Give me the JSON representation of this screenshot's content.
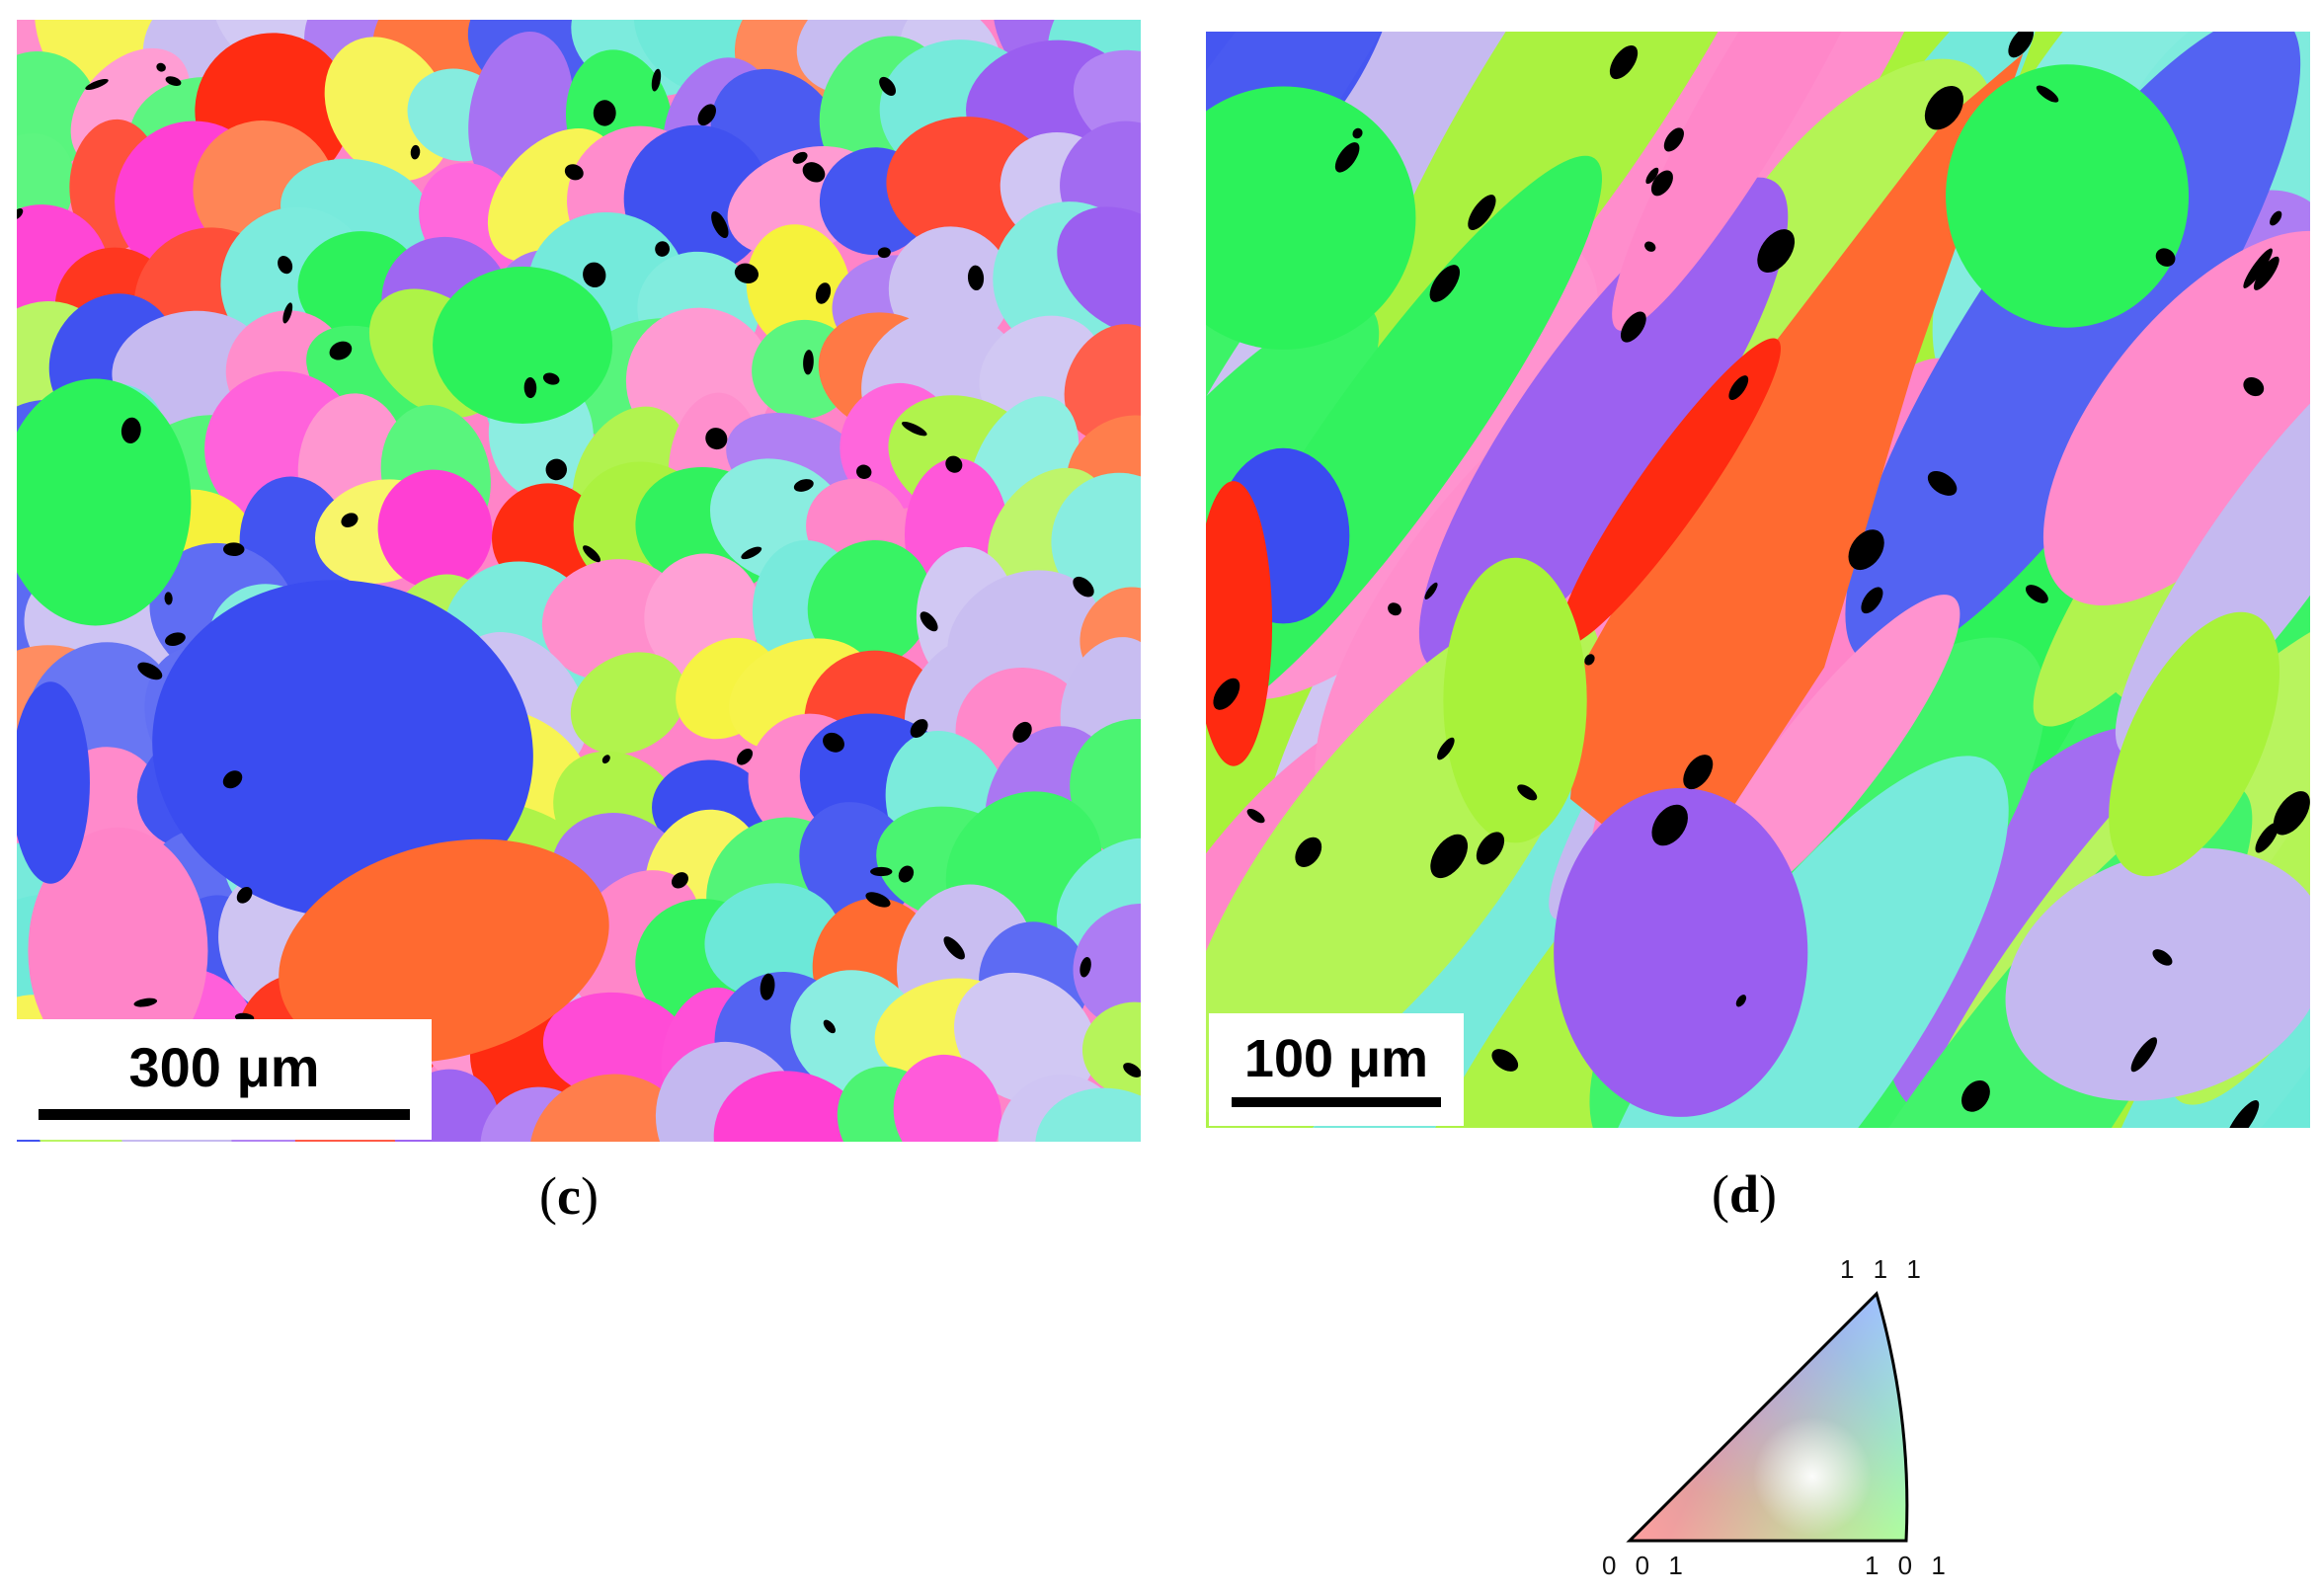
{
  "panels": {
    "c": {
      "caption_letter": "c",
      "scale_bar_label": "300 μm"
    },
    "d": {
      "caption_letter": "d",
      "scale_bar_label": "100 μm"
    }
  },
  "ipf_legend": {
    "label_top": "1 1 1",
    "label_bottom_left": "0 0 1",
    "label_bottom_right": "1 0 1",
    "colors": {
      "001": "#ff0000",
      "101": "#00ff00",
      "111": "#0000ff"
    }
  },
  "colors": {
    "red": "#ff2a10",
    "orange": "#ff6a30",
    "green": "#2cf25a",
    "lime": "#a8f23a",
    "cyan": "#6ae8d8",
    "blue": "#3a4cf0",
    "purple": "#9a5ef0",
    "magenta": "#ff3ad2",
    "pink": "#ff84c8",
    "lavender": "#c4b8f0",
    "yellow": "#f6f23a"
  }
}
